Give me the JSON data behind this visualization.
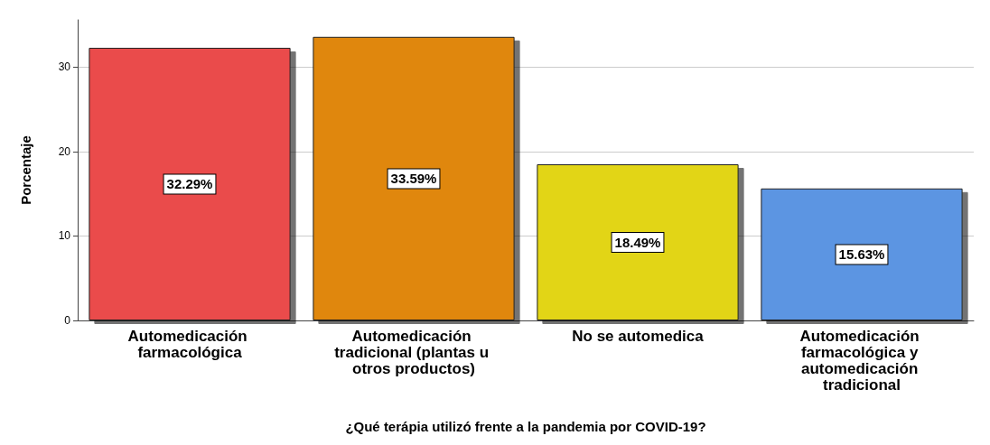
{
  "chart_data": {
    "type": "bar",
    "xlabel": "¿Qué terápia utilizó frente a la pandemia por COVID-19?",
    "ylabel": "Porcentaje",
    "categories": [
      "Automedicación farmacológica",
      "Automedicación tradicional (plantas u otros productos)",
      "No se automedica",
      "Automedicación farmacológica y automedicación tradicional"
    ],
    "values": [
      32.29,
      33.59,
      18.49,
      15.63
    ],
    "colors": [
      "#ea4b4b",
      "#e0870f",
      "#e2d513",
      "#5b95e2"
    ],
    "value_labels": [
      "32.29%",
      "33.59%",
      "18.49%",
      "15.63%"
    ],
    "ylim": [
      0,
      35.6
    ],
    "yticks": [
      0,
      10,
      20,
      30
    ],
    "grid": "y"
  }
}
